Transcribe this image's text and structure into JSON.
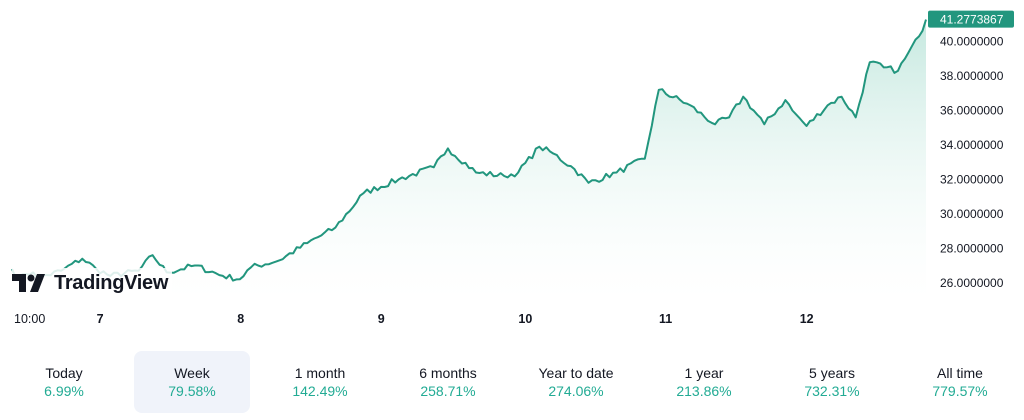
{
  "brand": {
    "logo_text": "TradingView",
    "logo_mark_icon": "tradingview-logo-icon"
  },
  "colors": {
    "line": "#22967e",
    "fill_top": "#bfe6dc",
    "fill_bottom": "#ffffff",
    "label_bg": "#22967e",
    "positive": "#22ab94",
    "selected_bg": "#f0f3fa"
  },
  "chart_data": {
    "type": "area",
    "title": "",
    "xlabel": "",
    "ylabel": "",
    "last_value_label": "41.2773867",
    "ylim": [
      25.0,
      41.6
    ],
    "x_ticks": [
      "10:00",
      "7",
      "8",
      "9",
      "10",
      "11",
      "12"
    ],
    "y_ticks": [
      "26.0000000",
      "28.0000000",
      "30.0000000",
      "32.0000000",
      "34.0000000",
      "36.0000000",
      "38.0000000",
      "40.0000000"
    ],
    "y_tick_values": [
      26,
      28,
      30,
      32,
      34,
      36,
      38,
      40
    ],
    "grid": false,
    "series": [
      {
        "x": [
          0.0,
          0.05,
          0.1,
          0.15,
          0.2,
          0.35,
          0.5,
          0.6,
          0.7,
          0.9,
          1.0,
          1.1,
          1.3,
          1.5,
          1.62,
          1.7,
          1.9,
          2.1,
          2.3,
          2.5,
          2.75,
          3.0,
          3.1,
          3.3,
          3.5,
          3.6,
          3.75,
          3.85,
          4.0,
          4.1,
          4.3,
          4.5,
          4.6,
          4.8,
          5.0,
          5.1,
          5.2,
          5.35,
          5.5,
          5.55,
          5.65,
          5.8,
          5.9,
          6.0,
          6.1,
          6.2,
          6.3,
          6.35,
          6.45,
          6.5
        ],
        "y": [
          26.8,
          26.2,
          26.5,
          26.6,
          26.3,
          26.7,
          27.4,
          26.8,
          26.4,
          26.7,
          27.6,
          26.6,
          27.0,
          26.4,
          26.2,
          26.9,
          27.3,
          28.3,
          29.2,
          31.2,
          32.0,
          32.7,
          33.8,
          32.4,
          32.2,
          32.4,
          33.9,
          33.5,
          32.6,
          31.8,
          32.4,
          33.2,
          37.2,
          36.4,
          35.2,
          35.6,
          36.8,
          35.2,
          36.6,
          36.0,
          35.1,
          36.3,
          36.8,
          35.6,
          38.8,
          38.5,
          38.3,
          39.0,
          40.3,
          41.2773867
        ]
      }
    ]
  },
  "periods": [
    {
      "label": "Today",
      "value": "6.99%"
    },
    {
      "label": "Week",
      "value": "79.58%",
      "selected": true
    },
    {
      "label": "1 month",
      "value": "142.49%"
    },
    {
      "label": "6 months",
      "value": "258.71%"
    },
    {
      "label": "Year to date",
      "value": "274.06%"
    },
    {
      "label": "1 year",
      "value": "213.86%"
    },
    {
      "label": "5 years",
      "value": "732.31%"
    },
    {
      "label": "All time",
      "value": "779.57%"
    }
  ]
}
